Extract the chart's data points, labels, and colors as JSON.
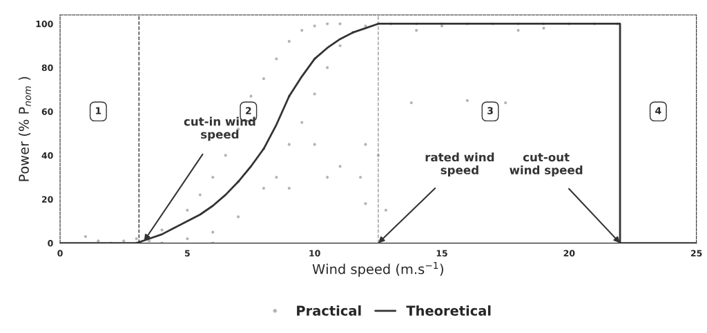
{
  "chart_data": {
    "type": "scatter",
    "xlabel": "Wind speed (m.s$^{−1}$)",
    "ylabel": "Power (% P$_{nom}$ )",
    "xlim": [
      0,
      25
    ],
    "ylim": [
      0,
      104
    ],
    "xticks": [
      0,
      5,
      10,
      15,
      20,
      25
    ],
    "yticks": [
      0,
      20,
      40,
      60,
      80,
      100
    ],
    "grid": false,
    "legend": "bottom",
    "series": [
      {
        "name": "Practical",
        "color": "#b3b3b3",
        "marker": "circle",
        "x": [
          1,
          1.5,
          2,
          2.5,
          3,
          3,
          3.5,
          4,
          4,
          5,
          5,
          5.5,
          6,
          6,
          6,
          6.5,
          7,
          7,
          7,
          7.5,
          8,
          8,
          8,
          8.5,
          8.5,
          9,
          9,
          9,
          9,
          9.5,
          9.5,
          10,
          10,
          10,
          10,
          10.5,
          10.5,
          10.5,
          11,
          11,
          11,
          11.5,
          11.8,
          12,
          12,
          12,
          12.5,
          12.5,
          12.8,
          13,
          13.8,
          14,
          14,
          15,
          15,
          16,
          16,
          17,
          17.5,
          18,
          18,
          19,
          19,
          20,
          21,
          21.9
        ],
        "values": [
          3,
          1,
          0,
          1,
          0,
          2,
          1,
          0,
          6,
          2,
          15,
          22,
          5,
          30,
          0,
          40,
          12,
          52,
          28,
          67,
          25,
          75,
          43,
          84,
          30,
          45,
          92,
          67,
          25,
          97,
          55,
          68,
          99,
          84,
          45,
          80,
          100,
          30,
          90,
          100,
          35,
          96,
          30,
          99,
          45,
          18,
          100,
          40,
          15,
          100,
          64,
          100,
          97,
          100,
          99,
          100,
          65,
          100,
          64,
          100,
          97,
          100,
          98,
          100,
          100,
          100
        ]
      },
      {
        "name": "Theoretical",
        "type": "line",
        "color": "#333333",
        "marker": "none",
        "line_style": "solid",
        "x": [
          0,
          3,
          3.5,
          4,
          4.5,
          5,
          5.5,
          6,
          6.5,
          7,
          7.5,
          8,
          8.5,
          9,
          9.5,
          10,
          10.5,
          11,
          11.5,
          12,
          12.5,
          22,
          22,
          25
        ],
        "values": [
          0,
          0,
          2,
          4,
          7,
          10,
          13,
          17,
          22,
          28,
          35,
          43,
          54,
          67,
          76,
          84,
          89,
          93,
          96,
          98,
          100,
          100,
          0,
          0
        ]
      }
    ],
    "ref_lines": [
      {
        "axis": "x",
        "value": 3.1,
        "color": "#333333",
        "line_style": "dashed"
      },
      {
        "axis": "x",
        "value": 12.5,
        "color": "#999999",
        "line_style": "dashed"
      }
    ],
    "annotations": [
      {
        "text": "1",
        "x": 1.5,
        "y": 60
      },
      {
        "text": "2",
        "x": 7.4,
        "y": 60
      },
      {
        "text": "3",
        "x": 16.9,
        "y": 60
      },
      {
        "text": "4",
        "x": 23.5,
        "y": 60
      },
      {
        "text": "cut-in wind\nspeed",
        "x": 3.3,
        "y": 1
      },
      {
        "text": "rated wind\nspeed",
        "x": 12.5,
        "y": 0
      },
      {
        "text": "cut-out\nwind speed",
        "x": 22,
        "y": 0
      }
    ]
  }
}
